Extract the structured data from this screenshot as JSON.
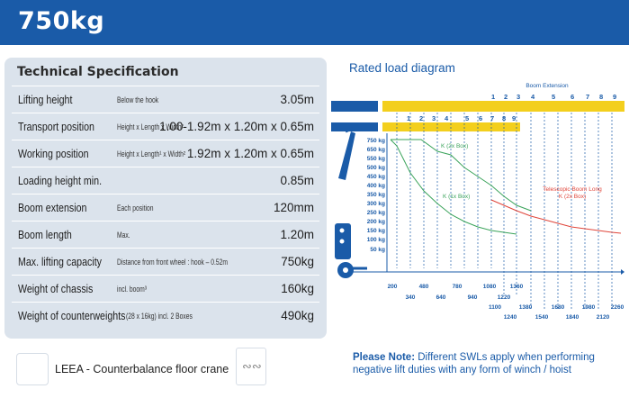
{
  "header": {
    "title": "750kg"
  },
  "spec": {
    "title": "Technical  Specification",
    "rows": [
      {
        "label": "Lifting height",
        "note": "Below the hook",
        "value": "3.05m"
      },
      {
        "label": "Transport position",
        "note": "Height x Length x Width²",
        "value": "1.00-1.92m x 1.20m x 0.65m"
      },
      {
        "label": "Working position",
        "note": "Height x Length¹ x Width²",
        "value": "1.92m x 1.20m x 0.65m"
      },
      {
        "label": "Loading height min.",
        "note": "",
        "value": "0.85m"
      },
      {
        "label": "Boom extension",
        "note": "Each position",
        "value": "120mm"
      },
      {
        "label": "Boom length",
        "note": "Max.",
        "value": "1.20m"
      },
      {
        "label": "Max. lifting capacity",
        "note": "Distance from front wheel : hook – 0.52m",
        "value": "750kg"
      },
      {
        "label": "Weight of chassis",
        "note": "incl. boom³",
        "value": "160kg"
      },
      {
        "label": "Weight of counterweights",
        "note": "(28 x 16kg) incl. 2 Boxes",
        "value": "490kg"
      }
    ]
  },
  "footer": {
    "leea_label": "LEEA - Counterbalance floor crane",
    "chain_icon": "chain-icon"
  },
  "diagram": {
    "title": "Rated load diagram",
    "boom_extension_label": "Boom Extension",
    "top_positions": [
      "1",
      "2",
      "3",
      "4",
      "5",
      "6",
      "7",
      "8",
      "9"
    ],
    "lower_positions": [
      "1",
      "2",
      "3",
      "4",
      "5",
      "6",
      "7",
      "8",
      "9"
    ],
    "y_labels": [
      "750 kg",
      "650 kg",
      "550 kg",
      "500 kg",
      "450 kg",
      "400 kg",
      "350 kg",
      "300 kg",
      "250 kg",
      "200 kg",
      "150 kg",
      "100 kg",
      "50 kg"
    ],
    "x_row1": [
      "200",
      "480",
      "780",
      "1080",
      "1360"
    ],
    "x_row2": [
      "340",
      "640",
      "940",
      "1220"
    ],
    "x_row3": [
      "1100",
      "1380",
      "1680",
      "1980",
      "2260"
    ],
    "x_row4": [
      "1240",
      "1540",
      "1840",
      "2120"
    ],
    "label_2x_box": "K (2x Box)",
    "label_1x_box": "K (1x Box)",
    "label_telescopic_1": "Telescopic Boom Long",
    "label_telescopic_2": "K (2x Box)",
    "colors": {
      "brand_blue": "#1a5ba8",
      "yellow": "#f3cf1d",
      "green": "#3aa35a",
      "red": "#e0453a"
    }
  },
  "note": {
    "bold": "Please Note:",
    "text": " Different SWLs apply when performing negative lift duties with any form of winch / hoist"
  }
}
